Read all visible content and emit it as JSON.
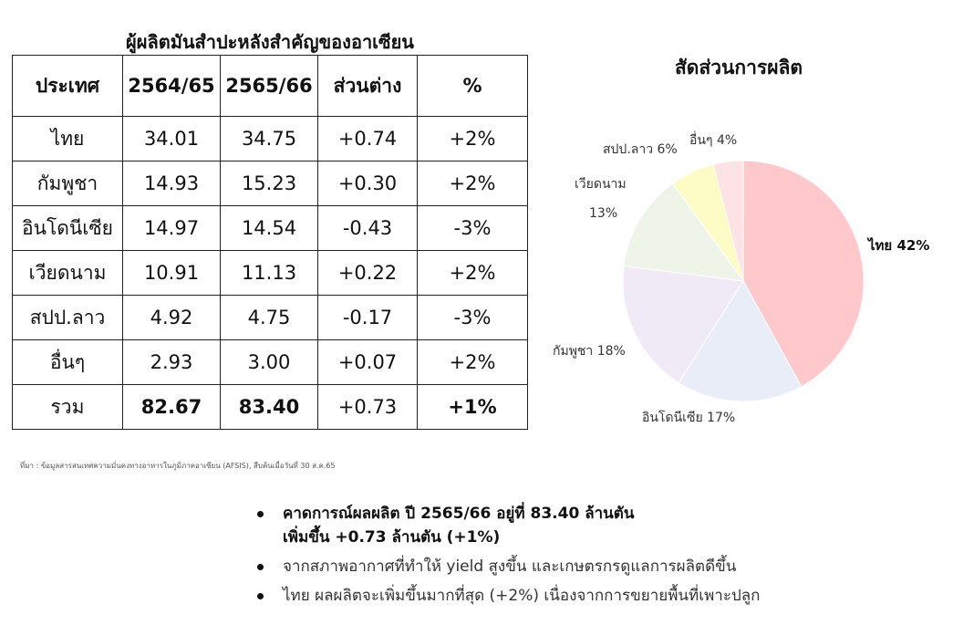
{
  "table": {
    "title": "ผู้ผลิตมันสำปะหลังสำคัญของอาเซียน",
    "headers": [
      "ประเทศ",
      "2564/65",
      "2565/66",
      "ส่วนต่าง",
      "%"
    ],
    "rows": [
      [
        "ไทย",
        "34.01",
        "34.75",
        "+0.74",
        "+2%"
      ],
      [
        "กัมพูชา",
        "14.93",
        "15.23",
        "+0.30",
        "+2%"
      ],
      [
        "อินโดนีเซีย",
        "14.97",
        "14.54",
        "-0.43",
        "-3%"
      ],
      [
        "เวียดนาม",
        "10.91",
        "11.13",
        "+0.22",
        "+2%"
      ],
      [
        "สปป.ลาว",
        "4.92",
        "4.75",
        "-0.17",
        "-3%"
      ],
      [
        "อื่นๆ",
        "2.93",
        "3.00",
        "+0.07",
        "+2%"
      ],
      [
        "รวม",
        "82.67",
        "83.40",
        "+0.73",
        "+1%"
      ]
    ]
  },
  "source": "ที่มา : ข้อมูลสารสนเทศความมั่นคงทางอาหารในภูมิภาคอาเซียน (AFSIS), สืบค้นเมื่อวันที่ 30 ส.ค.65",
  "chart_data": {
    "type": "pie",
    "title": "สัดส่วนการผลิต",
    "slices": [
      {
        "label": "ไทย",
        "pct_label": "42%",
        "value": 42,
        "color": "#ffc8cb"
      },
      {
        "label": "อินโดนีเซีย",
        "pct_label": "17%",
        "value": 17,
        "color": "#e9edf8"
      },
      {
        "label": "กัมพูชา",
        "pct_label": "18%",
        "value": 18,
        "color": "#f0e9f6"
      },
      {
        "label": "เวียดนาม",
        "pct_label": "13%",
        "value": 13,
        "color": "#eef4e8"
      },
      {
        "label": "สปป.ลาว",
        "pct_label": "6%",
        "value": 6,
        "color": "#fdfcc6"
      },
      {
        "label": "อื่นๆ",
        "pct_label": "4%",
        "value": 4,
        "color": "#fde3e5"
      }
    ]
  },
  "bullets": [
    {
      "line1": "คาดการณ์ผลผลิต ปี 2565/66 อยู่ที่ 83.40 ล้านตัน",
      "line2": "เพิ่มขึ้น +0.73 ล้านตัน (+1%)"
    },
    {
      "line1": "จากสภาพอากาศที่ทำให้ yield สูงขึ้น และเกษตรกรดูแลการผลิตดีขึ้น"
    },
    {
      "line1": "ไทย ผลผลิตจะเพิ่มขึ้นมากที่สุด (+2%) เนื่องจากการขยายพื้นที่เพาะปลูก"
    }
  ]
}
